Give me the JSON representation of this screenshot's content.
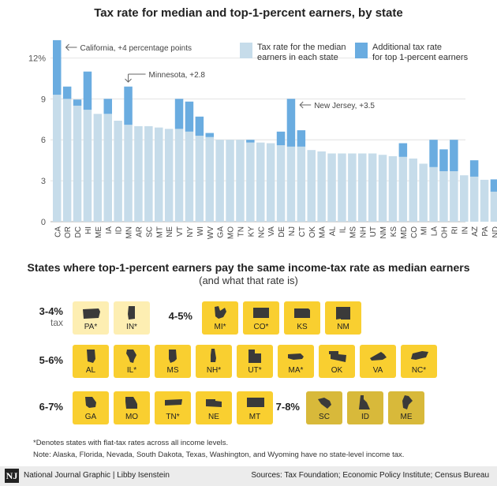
{
  "colors": {
    "median": "#c6dcea",
    "additional": "#6aace0",
    "tile_light": "#fdeeb2",
    "tile_mid": "#f9cf30",
    "tile_dark": "#d8b93a",
    "axis": "#999999",
    "grid": "#dddddd",
    "text": "#222222"
  },
  "chart_data": {
    "type": "bar",
    "stacked": true,
    "title": "Tax rate for median and top-1-percent earners, by state",
    "ylim": [
      0,
      14
    ],
    "yticks": [
      0,
      3,
      6,
      9,
      12
    ],
    "ytick_labels": [
      "0",
      "3",
      "6",
      "9",
      "12%"
    ],
    "grid": true,
    "legend_position": "top-right",
    "categories": [
      "CA",
      "OR",
      "DC",
      "HI",
      "ME",
      "IA",
      "ID",
      "MN",
      "AR",
      "SC",
      "MT",
      "NE",
      "VT",
      "NY",
      "WI",
      "WV",
      "GA",
      "MO",
      "TN",
      "KY",
      "NC",
      "VA",
      "DE",
      "NJ",
      "CT",
      "OK",
      "MA",
      "AL",
      "IL",
      "MS",
      "NH",
      "UT",
      "NM",
      "KS",
      "MD",
      "CO",
      "MI",
      "LA",
      "OH",
      "RI",
      "IN",
      "AZ",
      "PA",
      "ND"
    ],
    "series": [
      {
        "name": "Tax rate for the median earners in each state",
        "color_key": "median",
        "values": [
          9.3,
          9.0,
          8.5,
          8.2,
          7.9,
          7.9,
          7.4,
          7.1,
          7.0,
          7.0,
          6.9,
          6.8,
          6.8,
          6.6,
          6.3,
          6.2,
          6.0,
          6.0,
          6.0,
          5.8,
          5.8,
          5.75,
          5.6,
          5.5,
          5.5,
          5.25,
          5.15,
          5.0,
          5.0,
          5.0,
          5.0,
          5.0,
          4.9,
          4.8,
          4.75,
          4.63,
          4.25,
          4.0,
          3.7,
          3.7,
          3.4,
          3.3,
          3.07,
          2.2
        ]
      },
      {
        "name": "Additional tax rate for top 1-percent earners",
        "color_key": "additional",
        "values": [
          4.0,
          0.9,
          0.45,
          2.8,
          0,
          1.1,
          0,
          2.8,
          0,
          0,
          0,
          0,
          2.2,
          2.2,
          1.4,
          0.3,
          0,
          0,
          0,
          0.2,
          0,
          0,
          1.0,
          3.5,
          1.2,
          0,
          0,
          0,
          0,
          0,
          0,
          0,
          0,
          0,
          1.0,
          0,
          0,
          2.0,
          1.6,
          2.3,
          0,
          1.2,
          0,
          0.9
        ]
      }
    ],
    "legend": [
      {
        "label_line1": "Tax rate for the median",
        "label_line2": "earners in each state",
        "color_key": "median"
      },
      {
        "label_line1": "Additional tax rate",
        "label_line2": "for top 1-percent earners",
        "color_key": "additional"
      }
    ],
    "annotations": [
      {
        "text": "California, +4 percentage points",
        "category": "CA"
      },
      {
        "text": "Minnesota, +2.8",
        "category": "MN"
      },
      {
        "text": "New Jersey, +3.5",
        "category": "NJ"
      }
    ]
  },
  "section": {
    "title": "States where top-1-percent earners pay the same income-tax rate as median earners",
    "subtitle": "(and what that rate is)"
  },
  "groups": [
    {
      "range": "3-4%",
      "sub": "tax",
      "color_key": "tile_light",
      "states": [
        {
          "abbr": "PA*",
          "icon": "pennsylvania-shape-icon"
        },
        {
          "abbr": "IN*",
          "icon": "indiana-shape-icon"
        }
      ]
    },
    {
      "range": "4-5%",
      "sub": "",
      "color_key": "tile_mid",
      "states": [
        {
          "abbr": "MI*",
          "icon": "michigan-shape-icon"
        },
        {
          "abbr": "CO*",
          "icon": "colorado-shape-icon"
        },
        {
          "abbr": "KS",
          "icon": "kansas-shape-icon"
        },
        {
          "abbr": "NM",
          "icon": "new-mexico-shape-icon"
        }
      ]
    },
    {
      "range": "5-6%",
      "sub": "",
      "color_key": "tile_mid",
      "states": [
        {
          "abbr": "AL",
          "icon": "alabama-shape-icon"
        },
        {
          "abbr": "IL*",
          "icon": "illinois-shape-icon"
        },
        {
          "abbr": "MS",
          "icon": "mississippi-shape-icon"
        },
        {
          "abbr": "NH*",
          "icon": "new-hampshire-shape-icon"
        },
        {
          "abbr": "UT*",
          "icon": "utah-shape-icon"
        },
        {
          "abbr": "MA*",
          "icon": "massachusetts-shape-icon"
        },
        {
          "abbr": "OK",
          "icon": "oklahoma-shape-icon"
        },
        {
          "abbr": "VA",
          "icon": "virginia-shape-icon"
        },
        {
          "abbr": "NC*",
          "icon": "north-carolina-shape-icon"
        }
      ]
    },
    {
      "range": "6-7%",
      "sub": "",
      "color_key": "tile_mid",
      "states": [
        {
          "abbr": "GA",
          "icon": "georgia-shape-icon"
        },
        {
          "abbr": "MO",
          "icon": "missouri-shape-icon"
        },
        {
          "abbr": "TN*",
          "icon": "tennessee-shape-icon"
        },
        {
          "abbr": "NE",
          "icon": "nebraska-shape-icon"
        },
        {
          "abbr": "MT",
          "icon": "montana-shape-icon"
        }
      ]
    },
    {
      "range": "7-8%",
      "sub": "",
      "color_key": "tile_dark",
      "states": [
        {
          "abbr": "SC",
          "icon": "south-carolina-shape-icon"
        },
        {
          "abbr": "ID",
          "icon": "idaho-shape-icon"
        },
        {
          "abbr": "ME",
          "icon": "maine-shape-icon"
        }
      ]
    }
  ],
  "footnotes": {
    "flat_tax": "*Denotes states with flat-tax rates across all income levels.",
    "note": "Note: Alaska, Florida, Nevada, South Dakota, Texas, Washington, and Wyoming have no state-level income tax."
  },
  "footer": {
    "logo": "NJ",
    "credit": "National Journal Graphic  |  Libby Isenstein",
    "sources": "Sources: Tax Foundation; Economic Policy Institute; Census Bureau"
  }
}
